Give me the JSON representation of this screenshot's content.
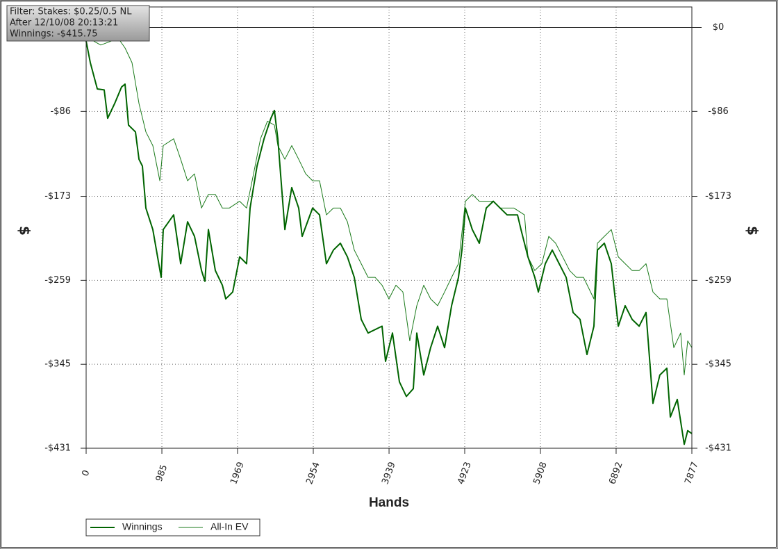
{
  "chart_data": {
    "type": "line",
    "annotations": [
      "Filter: Stakes: $0.25/0.5 NL",
      "After 12/10/08 20:13:21",
      "Winnings: -$415.75"
    ],
    "xlabel": "Hands",
    "ylabel": "$",
    "xlim": [
      0,
      7877
    ],
    "xticks": [
      0,
      985,
      1969,
      2954,
      3939,
      4923,
      5908,
      6892,
      7877
    ],
    "ylim": [
      -431,
      21
    ],
    "yticks": [
      {
        "value": 0,
        "label": "$0"
      },
      {
        "value": -86,
        "label": "-$86"
      },
      {
        "value": -173,
        "label": "-$173"
      },
      {
        "value": -259,
        "label": "-$259"
      },
      {
        "value": -345,
        "label": "-$345"
      },
      {
        "value": -431,
        "label": "-$431"
      }
    ],
    "grid": true,
    "legend": "bottom-left",
    "series": [
      {
        "name": "Winnings",
        "color": "#006400",
        "width": 2,
        "x": [
          0,
          54,
          145,
          235,
          280,
          370,
          461,
          506,
          551,
          641,
          687,
          732,
          777,
          867,
          976,
          1003,
          1138,
          1229,
          1319,
          1409,
          1500,
          1545,
          1590,
          1680,
          1771,
          1816,
          1906,
          1996,
          2087,
          2132,
          2222,
          2313,
          2403,
          2448,
          2493,
          2584,
          2674,
          2764,
          2809,
          2945,
          3035,
          3125,
          3216,
          3306,
          3397,
          3487,
          3577,
          3667,
          3848,
          3893,
          3984,
          4074,
          4164,
          4255,
          4300,
          4390,
          4480,
          4571,
          4661,
          4752,
          4842,
          4887,
          4932,
          5022,
          5113,
          5203,
          5294,
          5384,
          5474,
          5610,
          5655,
          5745,
          5835,
          5881,
          5971,
          6061,
          6152,
          6242,
          6332,
          6423,
          6513,
          6603,
          6649,
          6739,
          6829,
          6920,
          7010,
          7100,
          7191,
          7281,
          7371,
          7461,
          7552,
          7597,
          7687,
          7778,
          7823,
          7877
        ],
        "values": [
          -14,
          -36,
          -63,
          -64,
          -93,
          -78,
          -61,
          -58,
          -100,
          -107,
          -135,
          -142,
          -185,
          -207,
          -256,
          -207,
          -192,
          -242,
          -199,
          -214,
          -249,
          -260,
          -207,
          -249,
          -264,
          -278,
          -271,
          -235,
          -242,
          -185,
          -142,
          -114,
          -93,
          -85,
          -114,
          -207,
          -164,
          -185,
          -214,
          -185,
          -192,
          -242,
          -228,
          -221,
          -235,
          -256,
          -299,
          -313,
          -306,
          -342,
          -313,
          -363,
          -378,
          -370,
          -313,
          -356,
          -328,
          -306,
          -328,
          -285,
          -256,
          -228,
          -185,
          -207,
          -221,
          -185,
          -178,
          -185,
          -192,
          -192,
          -207,
          -235,
          -256,
          -271,
          -242,
          -228,
          -242,
          -256,
          -292,
          -299,
          -335,
          -306,
          -228,
          -221,
          -242,
          -306,
          -285,
          -299,
          -306,
          -292,
          -385,
          -356,
          -349,
          -399,
          -381,
          -427,
          -413,
          -416
        ]
      },
      {
        "name": "All-In EV",
        "color": "#1a7a1a",
        "width": 1,
        "x": [
          0,
          99,
          190,
          325,
          416,
          506,
          596,
          687,
          777,
          867,
          958,
          1003,
          1138,
          1229,
          1319,
          1409,
          1500,
          1590,
          1680,
          1771,
          1861,
          1996,
          2087,
          2177,
          2267,
          2358,
          2448,
          2493,
          2584,
          2674,
          2764,
          2855,
          2945,
          3035,
          3125,
          3216,
          3306,
          3397,
          3487,
          3577,
          3667,
          3758,
          3848,
          3938,
          4029,
          4119,
          4209,
          4300,
          4390,
          4480,
          4571,
          4661,
          4752,
          4842,
          4932,
          5022,
          5113,
          5203,
          5294,
          5384,
          5564,
          5700,
          5745,
          5835,
          5926,
          6016,
          6106,
          6197,
          6287,
          6377,
          6468,
          6603,
          6649,
          6739,
          6829,
          6920,
          7010,
          7100,
          7191,
          7281,
          7371,
          7461,
          7552,
          7642,
          7732,
          7778,
          7823,
          7877
        ],
        "values": [
          -4,
          -14,
          -18,
          -14,
          -11,
          -21,
          -36,
          -78,
          -107,
          -121,
          -157,
          -121,
          -114,
          -135,
          -157,
          -150,
          -185,
          -171,
          -171,
          -185,
          -185,
          -178,
          -185,
          -150,
          -114,
          -96,
          -100,
          -121,
          -135,
          -121,
          -135,
          -150,
          -157,
          -157,
          -192,
          -185,
          -185,
          -199,
          -228,
          -242,
          -256,
          -256,
          -264,
          -278,
          -264,
          -271,
          -321,
          -285,
          -264,
          -278,
          -285,
          -271,
          -256,
          -242,
          -178,
          -171,
          -178,
          -178,
          -178,
          -185,
          -185,
          -192,
          -235,
          -249,
          -242,
          -214,
          -221,
          -235,
          -249,
          -256,
          -256,
          -278,
          -221,
          -214,
          -207,
          -235,
          -242,
          -249,
          -249,
          -242,
          -271,
          -278,
          -278,
          -328,
          -313,
          -356,
          -321,
          -328
        ]
      }
    ]
  }
}
